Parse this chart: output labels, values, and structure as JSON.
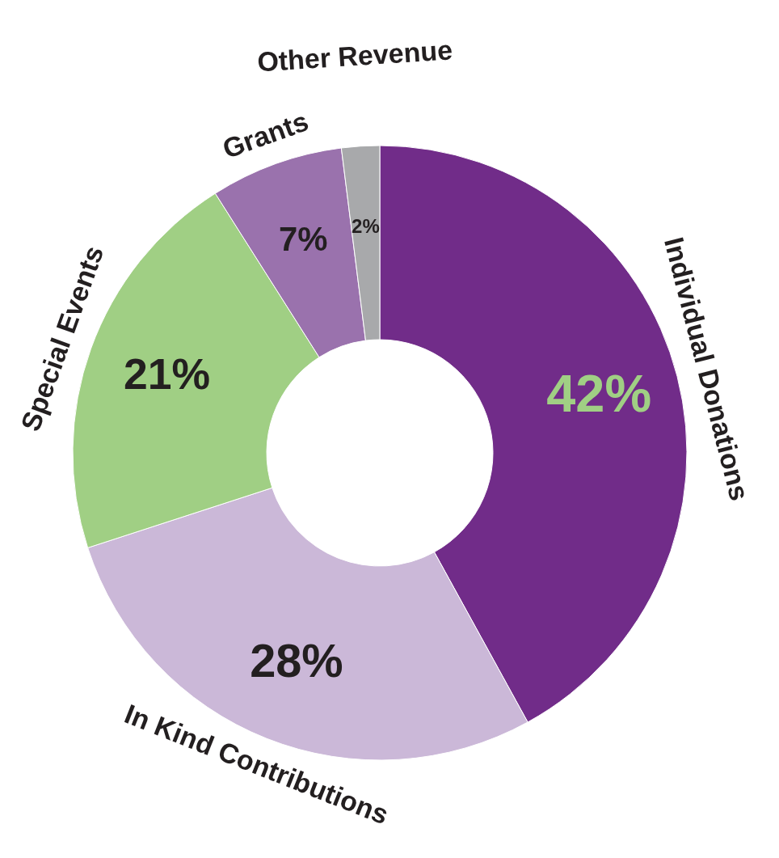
{
  "chart_data": {
    "type": "donut",
    "categories": [
      "Individual Donations",
      "In Kind Contributions",
      "Special Events",
      "Grants",
      "Other Revenue"
    ],
    "values": [
      42,
      28,
      21,
      7,
      2
    ],
    "colors": [
      "#712c89",
      "#cbb8d8",
      "#a0cf84",
      "#9a72ad",
      "#a8a9ab"
    ],
    "value_labels": [
      "42%",
      "28%",
      "21%",
      "7%",
      "2%"
    ]
  }
}
